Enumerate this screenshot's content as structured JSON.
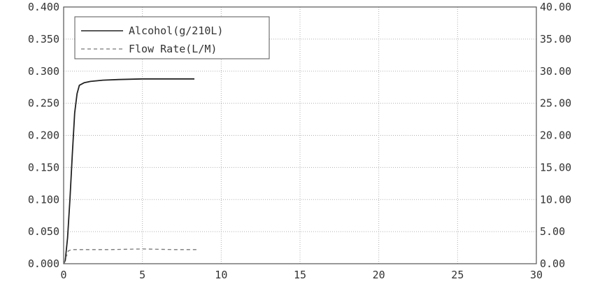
{
  "chart_data": {
    "type": "line",
    "x_ticks": [
      "0",
      "5",
      "10",
      "15",
      "20",
      "25",
      "30"
    ],
    "xlim": [
      0,
      30
    ],
    "y_left_ticks": [
      "0.000",
      "0.050",
      "0.100",
      "0.150",
      "0.200",
      "0.250",
      "0.300",
      "0.350",
      "0.400"
    ],
    "ylim_left": [
      0,
      0.4
    ],
    "y_right_ticks": [
      "0.00",
      "5.00",
      "10.00",
      "15.00",
      "20.00",
      "25.00",
      "30.00",
      "35.00",
      "40.00"
    ],
    "ylim_right": [
      0,
      40
    ],
    "grid": true,
    "legend_position": "top-left",
    "series": [
      {
        "name": "Alcohol(g/210L)",
        "axis": "left",
        "style": "solid",
        "color": "#222222",
        "x": [
          0,
          0.1,
          0.25,
          0.4,
          0.55,
          0.7,
          0.85,
          1.0,
          1.3,
          1.7,
          2.5,
          3.5,
          5.0,
          6.5,
          8.3
        ],
        "y": [
          0.0,
          0.005,
          0.04,
          0.1,
          0.17,
          0.235,
          0.265,
          0.278,
          0.282,
          0.284,
          0.286,
          0.287,
          0.288,
          0.288,
          0.288
        ]
      },
      {
        "name": "Flow Rate(L/M)",
        "axis": "right",
        "style": "dashed",
        "color": "#777777",
        "x": [
          0,
          0.15,
          0.3,
          0.5,
          1.0,
          3.0,
          5.0,
          7.0,
          8.6
        ],
        "y": [
          0.0,
          1.0,
          2.0,
          2.2,
          2.2,
          2.2,
          2.3,
          2.2,
          2.2
        ]
      }
    ]
  }
}
